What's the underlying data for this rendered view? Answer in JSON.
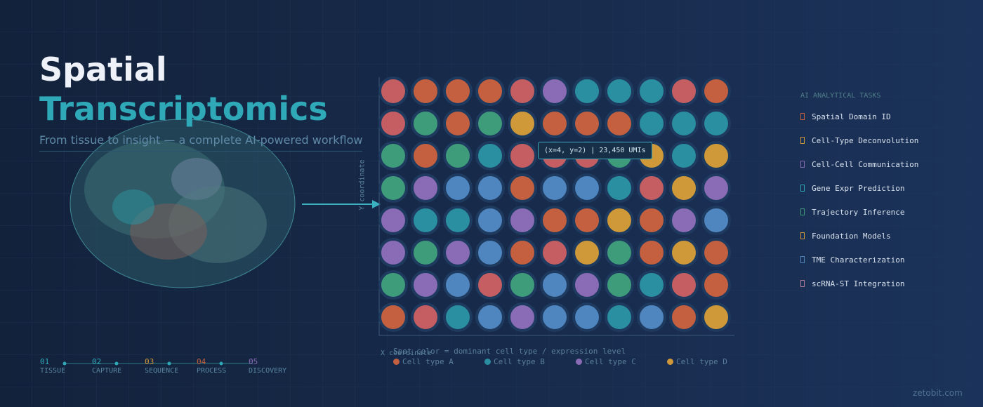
{
  "header": {
    "title_line1": "Spatial",
    "title_line2": "Transcriptomics",
    "subtitle": "From tissue to insight — a complete AI-powered workflow"
  },
  "steps": [
    {
      "number": "01",
      "label": "TISSUE"
    },
    {
      "number": "02",
      "label": "CAPTURE"
    },
    {
      "number": "03",
      "label": "SEQUENCE"
    },
    {
      "number": "04",
      "label": "PROCESS"
    },
    {
      "number": "05",
      "label": "DISCOVERY"
    }
  ],
  "spot_grid": {
    "x_axis_label": "X coordinate",
    "y_axis_label": "Y coordinate",
    "tooltip": "(x=4, y=2) | 23,450 UMIs",
    "caption": "Spot color = dominant cell type / expression level",
    "legend": [
      "Cell type A",
      "Cell type B",
      "Cell type C",
      "Cell type D"
    ]
  },
  "tasks": {
    "title": "AI ANALYTICAL TASKS",
    "items": [
      "Spatial Domain ID",
      "Cell-Type Deconvolution",
      "Cell-Cell Communication",
      "Gene Expr Prediction",
      "Trajectory Inference",
      "Foundation Models",
      "TME Characterization",
      "scRNA-ST Integration"
    ]
  },
  "footer": "zetobit.com"
}
